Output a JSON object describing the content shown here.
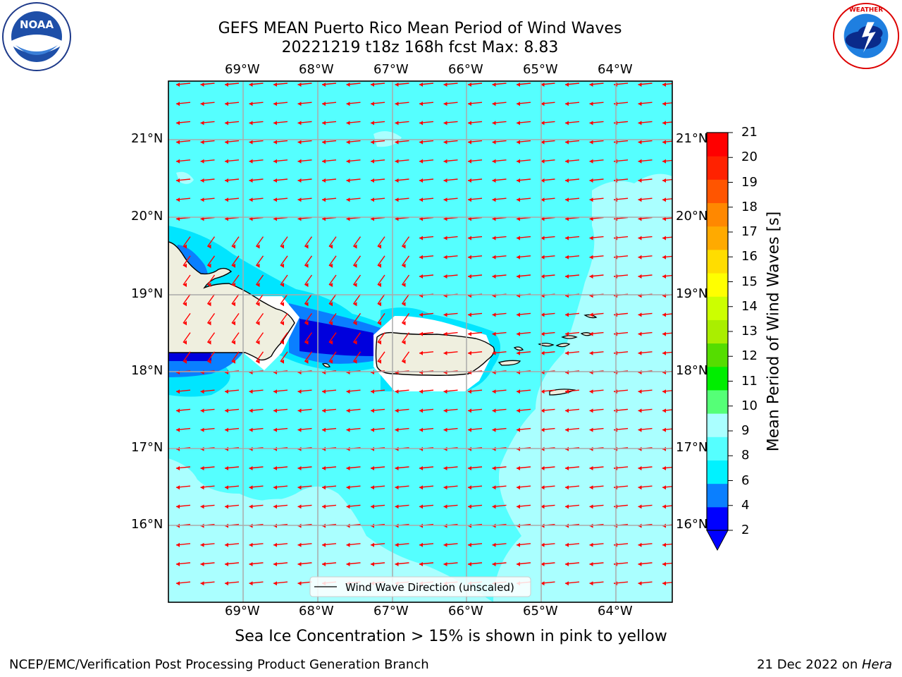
{
  "title": {
    "line1": "GEFS MEAN Puerto Rico Mean Period of Wind Waves",
    "line2": "20221219 t18z 168h fcst   Max: 8.83"
  },
  "logos": {
    "left": "NOAA",
    "left_ring": "NATIONAL OCEANIC AND ATMOSPHERIC ADMINISTRATION · U.S. DEPARTMENT OF COMMERCE",
    "right_ring": "NATIONAL WEATHER SERVICE"
  },
  "map": {
    "lon_labels": [
      "69°W",
      "68°W",
      "67°W",
      "66°W",
      "65°W",
      "64°W"
    ],
    "lat_labels": [
      "21°N",
      "20°N",
      "19°N",
      "18°N",
      "17°N",
      "16°N"
    ],
    "legend_label": "Wind Wave Direction (unscaled)",
    "colors": {
      "ocean_6_8": "#55ffff",
      "ocean_8_9": "#aaffff",
      "ocean_4_6": "#00e5ff",
      "ocean_2_4": "#0a7fff",
      "ocean_lt2": "#0000dd",
      "land": "#efefdf",
      "arrows": "#ff0000"
    }
  },
  "colorbar": {
    "label": "Mean Period of Wind Waves [s]",
    "ticks": [
      "21",
      "20",
      "19",
      "18",
      "17",
      "16",
      "15",
      "14",
      "13",
      "12",
      "11",
      "10",
      "9",
      "8",
      "6",
      "4",
      "2"
    ],
    "colors": [
      "#0000ff",
      "#0a7fff",
      "#00f2ff",
      "#55ffff",
      "#aaffff",
      "#55ff77",
      "#00ee00",
      "#55dd00",
      "#aaee00",
      "#ccff00",
      "#ffff00",
      "#ffdd00",
      "#ffaa00",
      "#ff8800",
      "#ff5500",
      "#ff2200",
      "#ff0000"
    ]
  },
  "footer": {
    "subtitle": "Sea Ice Concentration > 15% is shown in pink to yellow",
    "left": "NCEP/EMC/Verification Post Processing Product Generation Branch",
    "right_date": "21 Dec 2022 on ",
    "right_host": "Hera"
  }
}
